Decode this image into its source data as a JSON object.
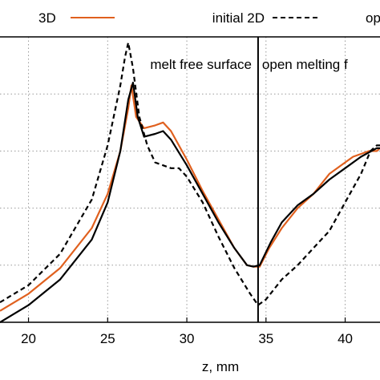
{
  "chart_data": {
    "type": "line",
    "xlabel": "z, mm",
    "ylabel": "",
    "xlim": [
      18.2,
      42.2
    ],
    "ylim": [
      0,
      100
    ],
    "grid": true,
    "x_ticks": [
      20,
      25,
      30,
      35,
      40
    ],
    "legend_position": "top",
    "colors": {
      "3d": "#e0601e",
      "initial_2d": "#000000",
      "third": "#000000"
    },
    "legend": [
      {
        "label": "3D",
        "style": "solid",
        "color": "#e0601e"
      },
      {
        "label": "initial 2D",
        "style": "dashed",
        "color": "#000000"
      },
      {
        "label": "op",
        "style": "solid",
        "color": "#000000"
      }
    ],
    "annotations": {
      "divider_z": 34.5,
      "left_region": "melt free surface",
      "right_region": "open melting f"
    },
    "series": [
      {
        "name": "3D",
        "style": "solid",
        "color": "#e0601e",
        "points": [
          [
            18.2,
            4
          ],
          [
            20,
            10
          ],
          [
            22,
            19
          ],
          [
            24,
            33
          ],
          [
            25,
            45
          ],
          [
            25.8,
            60
          ],
          [
            26.3,
            75
          ],
          [
            26.5,
            83
          ],
          [
            26.8,
            72
          ],
          [
            27.3,
            68
          ],
          [
            28,
            69
          ],
          [
            28.5,
            70
          ],
          [
            29,
            67
          ],
          [
            30,
            57
          ],
          [
            31,
            46
          ],
          [
            32,
            36
          ],
          [
            33,
            26
          ],
          [
            33.8,
            20
          ],
          [
            34.2,
            19.5
          ],
          [
            34.6,
            19.5
          ],
          [
            35.2,
            26
          ],
          [
            36,
            33
          ],
          [
            37,
            40
          ],
          [
            38,
            45
          ],
          [
            39,
            52
          ],
          [
            40,
            56
          ],
          [
            40.5,
            58
          ],
          [
            41,
            59
          ],
          [
            41.5,
            60
          ],
          [
            42,
            60
          ],
          [
            42.2,
            61
          ]
        ]
      },
      {
        "name": "initial 2D",
        "style": "dashed",
        "color": "#000000",
        "points": [
          [
            18.2,
            7
          ],
          [
            20,
            13
          ],
          [
            22,
            24
          ],
          [
            24,
            43
          ],
          [
            25,
            62
          ],
          [
            25.8,
            83
          ],
          [
            26.1,
            93
          ],
          [
            26.3,
            98
          ],
          [
            26.6,
            89
          ],
          [
            27,
            72
          ],
          [
            27.5,
            62
          ],
          [
            28,
            56
          ],
          [
            29,
            54
          ],
          [
            29.5,
            54
          ],
          [
            30,
            51
          ],
          [
            31,
            42
          ],
          [
            32,
            30
          ],
          [
            33,
            19
          ],
          [
            34,
            10
          ],
          [
            34.5,
            6
          ],
          [
            35,
            8
          ],
          [
            36,
            15
          ],
          [
            37,
            20
          ],
          [
            38,
            26
          ],
          [
            39,
            32
          ],
          [
            40,
            42
          ],
          [
            41,
            52
          ],
          [
            41.6,
            60
          ],
          [
            42,
            62
          ],
          [
            42.2,
            62
          ]
        ]
      },
      {
        "name": "op",
        "style": "solid",
        "color": "#000000",
        "points": [
          [
            18.2,
            0
          ],
          [
            20,
            6
          ],
          [
            22,
            15
          ],
          [
            24,
            29
          ],
          [
            25,
            42
          ],
          [
            25.8,
            60
          ],
          [
            26.3,
            78
          ],
          [
            26.6,
            84
          ],
          [
            26.9,
            72
          ],
          [
            27.3,
            65
          ],
          [
            28,
            66
          ],
          [
            28.5,
            67
          ],
          [
            29,
            64
          ],
          [
            30,
            55
          ],
          [
            31,
            45
          ],
          [
            32,
            35
          ],
          [
            33,
            26
          ],
          [
            33.8,
            20
          ],
          [
            34.2,
            19.5
          ],
          [
            34.6,
            20
          ],
          [
            35.3,
            28
          ],
          [
            36,
            35
          ],
          [
            37,
            41
          ],
          [
            38,
            45
          ],
          [
            39,
            50
          ],
          [
            40,
            54
          ],
          [
            41,
            58
          ],
          [
            42,
            61
          ],
          [
            42.2,
            61
          ]
        ]
      }
    ]
  }
}
